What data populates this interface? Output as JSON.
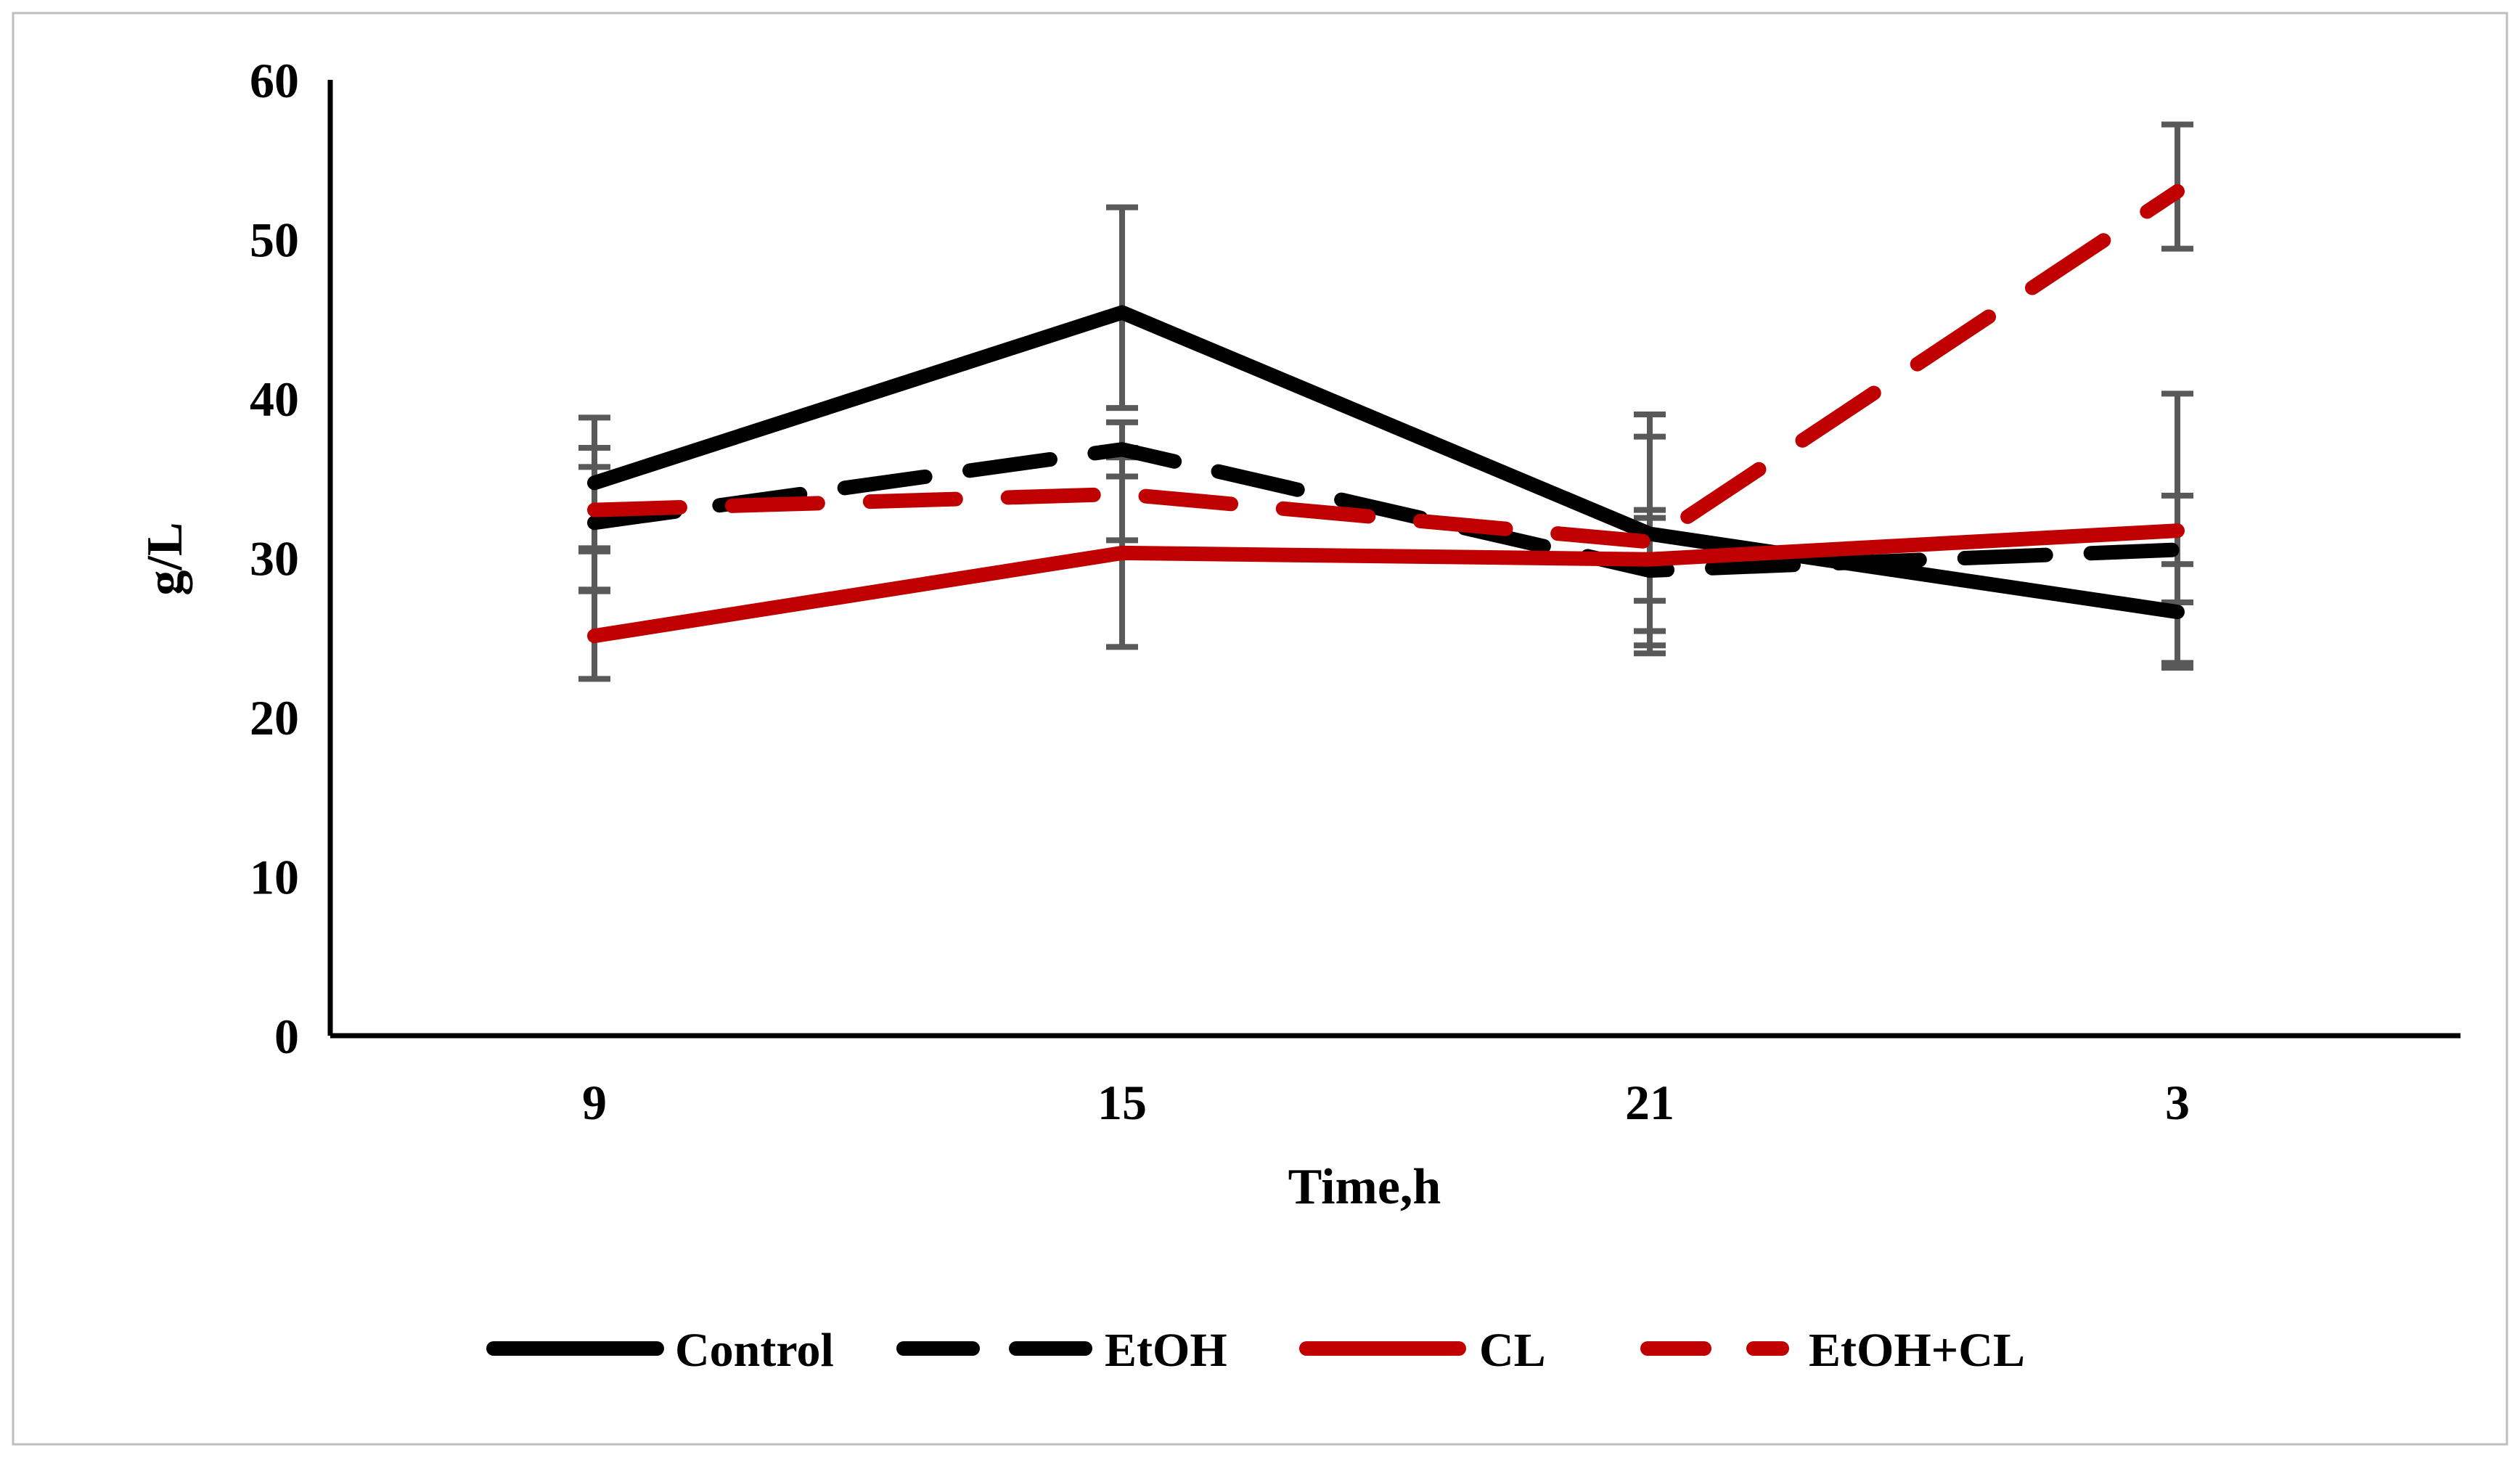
{
  "figure": {
    "background": "#ffffff",
    "border_color": "#bfbfbf"
  },
  "chart_data": {
    "type": "line",
    "title": "",
    "xlabel": "Time,h",
    "ylabel": "g/L",
    "x_categories": [
      "9",
      "15",
      "21",
      "3"
    ],
    "yticks": [
      "0",
      "10",
      "20",
      "30",
      "40",
      "50",
      "60"
    ],
    "ylim": [
      0,
      60
    ],
    "grid": false,
    "legend_position": "bottom",
    "error_bar_color": "#595959",
    "axis_color": "#000000",
    "series": [
      {
        "name": "Control",
        "color": "#000000",
        "style": "solid",
        "values": [
          34.7,
          45.4,
          31.5,
          26.6
        ],
        "error_low": [
          30.6,
          39.4,
          24.0,
          23.4
        ],
        "error_high": [
          38.8,
          52.0,
          39.0,
          29.6
        ]
      },
      {
        "name": "EtOH",
        "color": "#000000",
        "style": "dashed",
        "values": [
          32.2,
          36.8,
          29.2,
          30.5
        ],
        "error_low": [
          27.9,
          35.1,
          25.4,
          27.2
        ],
        "error_high": [
          36.9,
          38.5,
          33.0,
          33.9
        ]
      },
      {
        "name": "CL",
        "color": "#C00000",
        "style": "solid",
        "values": [
          25.1,
          30.3,
          29.9,
          31.7
        ],
        "error_low": [
          22.4,
          24.4,
          27.3,
          23.1
        ],
        "error_high": [
          28.0,
          36.3,
          32.5,
          40.3
        ]
      },
      {
        "name": "EtOH+CL",
        "color": "#C00000",
        "style": "dashed",
        "values": [
          33.0,
          34.0,
          31.0,
          53.0
        ],
        "error_low": [
          30.4,
          31.1,
          24.5,
          49.4
        ],
        "error_high": [
          35.7,
          36.9,
          37.6,
          57.2
        ]
      }
    ]
  }
}
